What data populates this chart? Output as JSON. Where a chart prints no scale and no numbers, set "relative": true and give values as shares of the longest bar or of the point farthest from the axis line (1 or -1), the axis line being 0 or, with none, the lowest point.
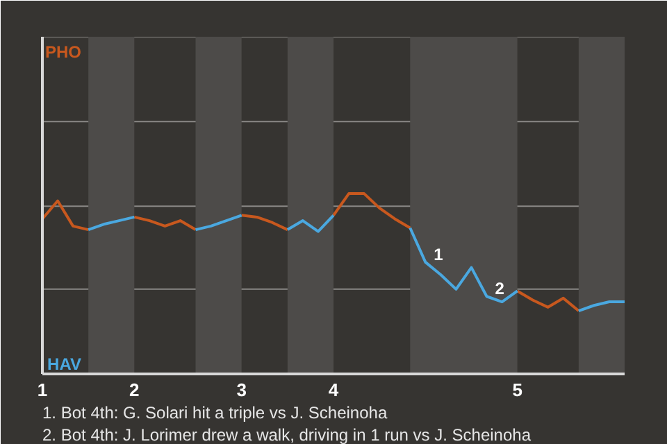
{
  "chart_data": {
    "type": "line",
    "relative": true,
    "categories": [
      "1",
      null,
      null,
      null,
      null,
      null,
      "2",
      null,
      null,
      null,
      null,
      null,
      null,
      "3",
      null,
      null,
      null,
      null,
      null,
      "4",
      null,
      null,
      null,
      null,
      null,
      null,
      null,
      null,
      null,
      null,
      null,
      "5",
      null,
      null,
      null,
      null,
      null,
      null,
      null
    ],
    "series": [
      {
        "color": "#c8581e",
        "values": [
          0.86,
          0.96,
          0.82,
          0.8,
          null,
          null,
          0.87,
          0.85,
          0.82,
          0.85,
          0.8,
          null,
          null,
          0.88,
          0.87,
          0.84,
          0.8,
          null,
          null,
          0.88,
          1,
          1,
          0.92,
          0.86,
          0.81,
          null,
          null,
          null,
          null,
          null,
          null,
          0.46,
          0.41,
          0.37,
          0.42,
          0.35,
          null,
          null,
          null
        ]
      },
      {
        "color": "#4aa8e0",
        "values": [
          null,
          null,
          null,
          0.8,
          0.83,
          0.85,
          0.87,
          null,
          null,
          null,
          0.8,
          0.82,
          0.85,
          0.88,
          null,
          null,
          0.8,
          0.85,
          0.79,
          0.88,
          null,
          null,
          null,
          null,
          0.81,
          0.62,
          0.55,
          0.47,
          0.59,
          0.43,
          0.4,
          0.46,
          null,
          null,
          null,
          0.35,
          0.38,
          0.4,
          0.4
        ]
      }
    ],
    "ref_lines": [
      {
        "axis": "y",
        "value": 0.47,
        "color": "#8a8886"
      },
      {
        "axis": "y",
        "value": 0.93,
        "color": "#8a8886"
      },
      {
        "axis": "y",
        "value": 1.4,
        "color": "#8a8886"
      },
      {
        "axis": "y",
        "value": 1.87,
        "color": "#8a8886"
      }
    ],
    "annotations": [
      "PHO",
      "HAV",
      {
        "text": "1",
        "y": 0.62
      },
      {
        "text": "2",
        "y": 0.43
      },
      "1. Bot 4th: G. Solari hit a triple vs J. Scheinoha",
      "2. Bot 4th: J. Lorimer drew a walk, driving in 1 run vs J. Scheinoha"
    ]
  }
}
